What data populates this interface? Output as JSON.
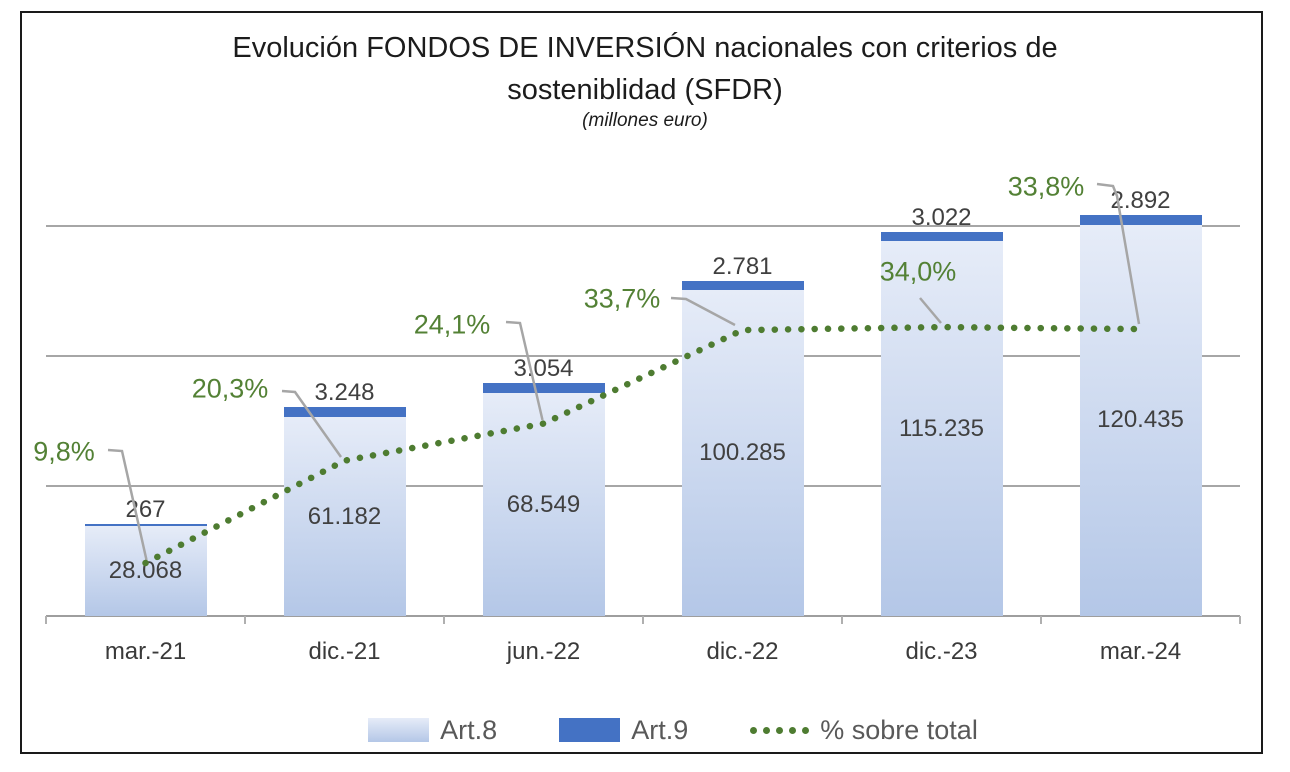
{
  "header": {
    "title_line1": "Evolución FONDOS DE INVERSIÓN nacionales con criterios de",
    "title_line2": "sosteniblidad (SFDR)",
    "subtitle": "(millones euro)"
  },
  "colors": {
    "art8_gradient_top": "#e6ecf8",
    "art8_gradient_bottom": "#b4c7e7",
    "art9_blue": "#4472c4",
    "green_line": "#4e7c31",
    "green_label": "#538135",
    "leader_gray": "#a6a6a6",
    "gridline_gray": "#a6a6a6",
    "value_label_dark": "#404040",
    "legend_text_gray": "#595959",
    "frame_border": "#1a1a1a"
  },
  "chart_data": {
    "type": "bar",
    "subtype": "stacked-bars-with-dotted-percentage-line",
    "title": "Evolución FONDOS DE INVERSIÓN nacionales con criterios de sosteniblidad (SFDR)",
    "subtitle": "(millones euro)",
    "categories": [
      "mar.-21",
      "dic.-21",
      "jun.-22",
      "dic.-22",
      "dic.-23",
      "mar.-24"
    ],
    "series": [
      {
        "name": "Art.8",
        "type": "bar",
        "stacked": true,
        "values": [
          28068,
          61182,
          68549,
          100285,
          115235,
          120435
        ],
        "labels": [
          "28.068",
          "61.182",
          "68.549",
          "100.285",
          "115.235",
          "120.435"
        ]
      },
      {
        "name": "Art.9",
        "type": "bar",
        "stacked": true,
        "values": [
          267,
          3248,
          3054,
          2781,
          3022,
          2892
        ],
        "labels": [
          "267",
          "3.248",
          "3.054",
          "2.781",
          "3.022",
          "2.892"
        ]
      },
      {
        "name": "% sobre total",
        "type": "dotted-line",
        "axis": "secondary",
        "values": [
          9.8,
          20.3,
          24.1,
          33.7,
          34.0,
          33.8
        ],
        "labels": [
          "9,8%",
          "20,3%",
          "24,1%",
          "33,7%",
          "34,0%",
          "33,8%"
        ]
      }
    ],
    "primary_axis": {
      "min": 0,
      "max": 120000,
      "gridline_step": 40000,
      "tick_labels_visible": false,
      "grid": true
    },
    "legend_position": "bottom"
  }
}
